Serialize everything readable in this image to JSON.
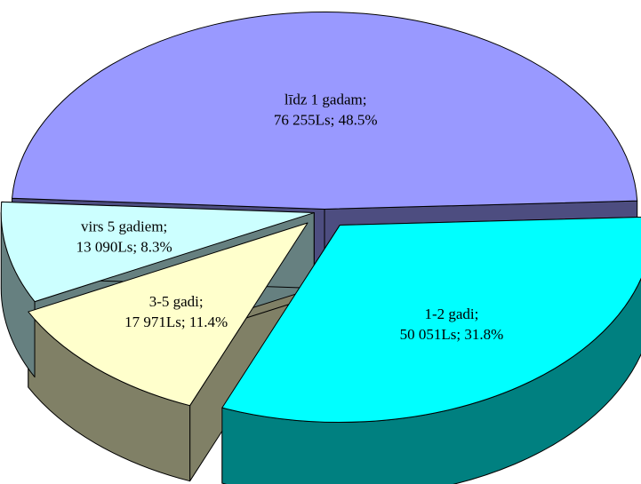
{
  "chart_data": {
    "type": "pie",
    "categories": [
      "līdz 1 gadam;",
      "1-2 gadi;",
      "3-5 gadi;",
      "virs 5 gadiem;"
    ],
    "values": [
      76255,
      50051,
      17971,
      13090
    ],
    "value_labels": [
      "76 255Ls; 48.5%",
      "50 051Ls; 31.8%",
      "17 971Ls; 11.4%",
      "13 090Ls; 8.3%"
    ],
    "colors": [
      "#9999ff",
      "#00ffff",
      "#ffffcc",
      "#ccffff"
    ],
    "side_colors": [
      "#4d4d80",
      "#008080",
      "#808066",
      "#668080"
    ]
  }
}
